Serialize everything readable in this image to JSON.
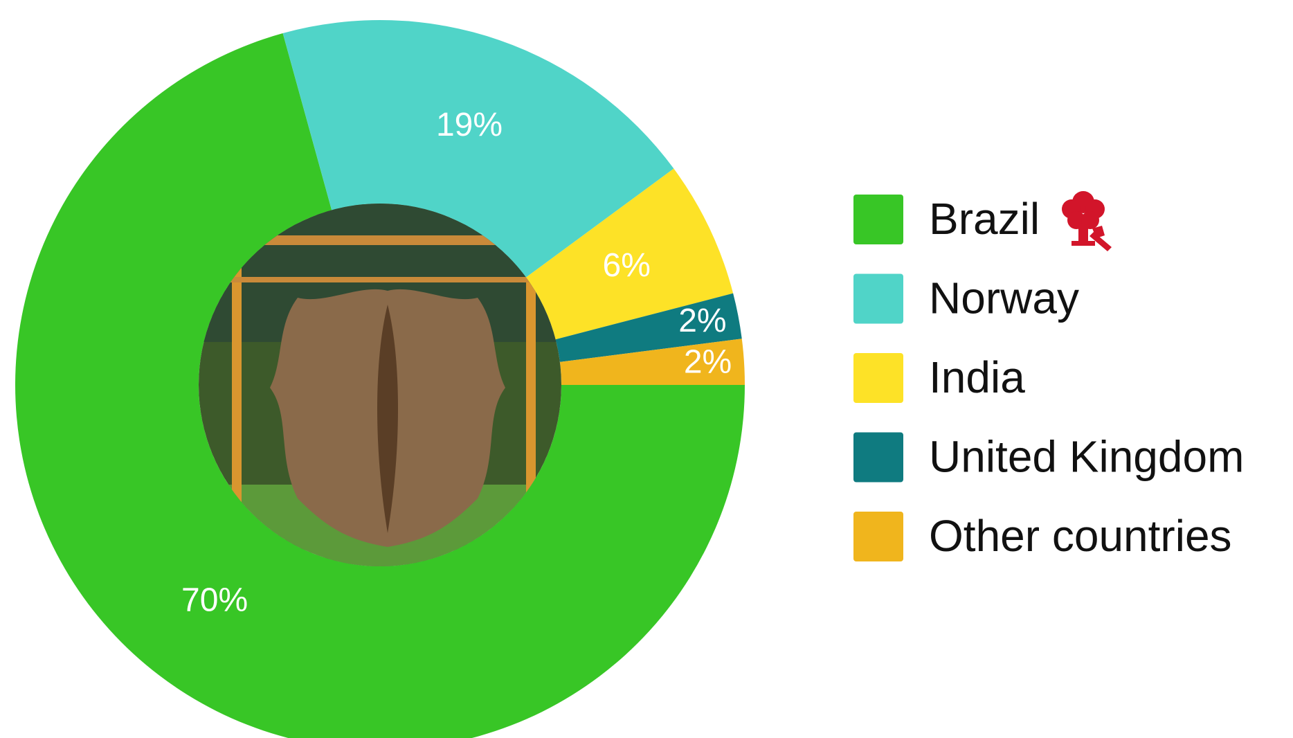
{
  "chart_data": {
    "type": "donut",
    "categories": [
      "Brazil",
      "Norway",
      "India",
      "United Kingdom",
      "Other countries"
    ],
    "values": [
      70,
      19,
      6,
      2,
      2
    ],
    "value_labels": [
      "70%",
      "19%",
      "6%",
      "2%",
      "2%"
    ],
    "colors": [
      "#38c626",
      "#50d4c8",
      "#fde227",
      "#0f7b80",
      "#f0b51d"
    ],
    "legend": "right"
  }
}
